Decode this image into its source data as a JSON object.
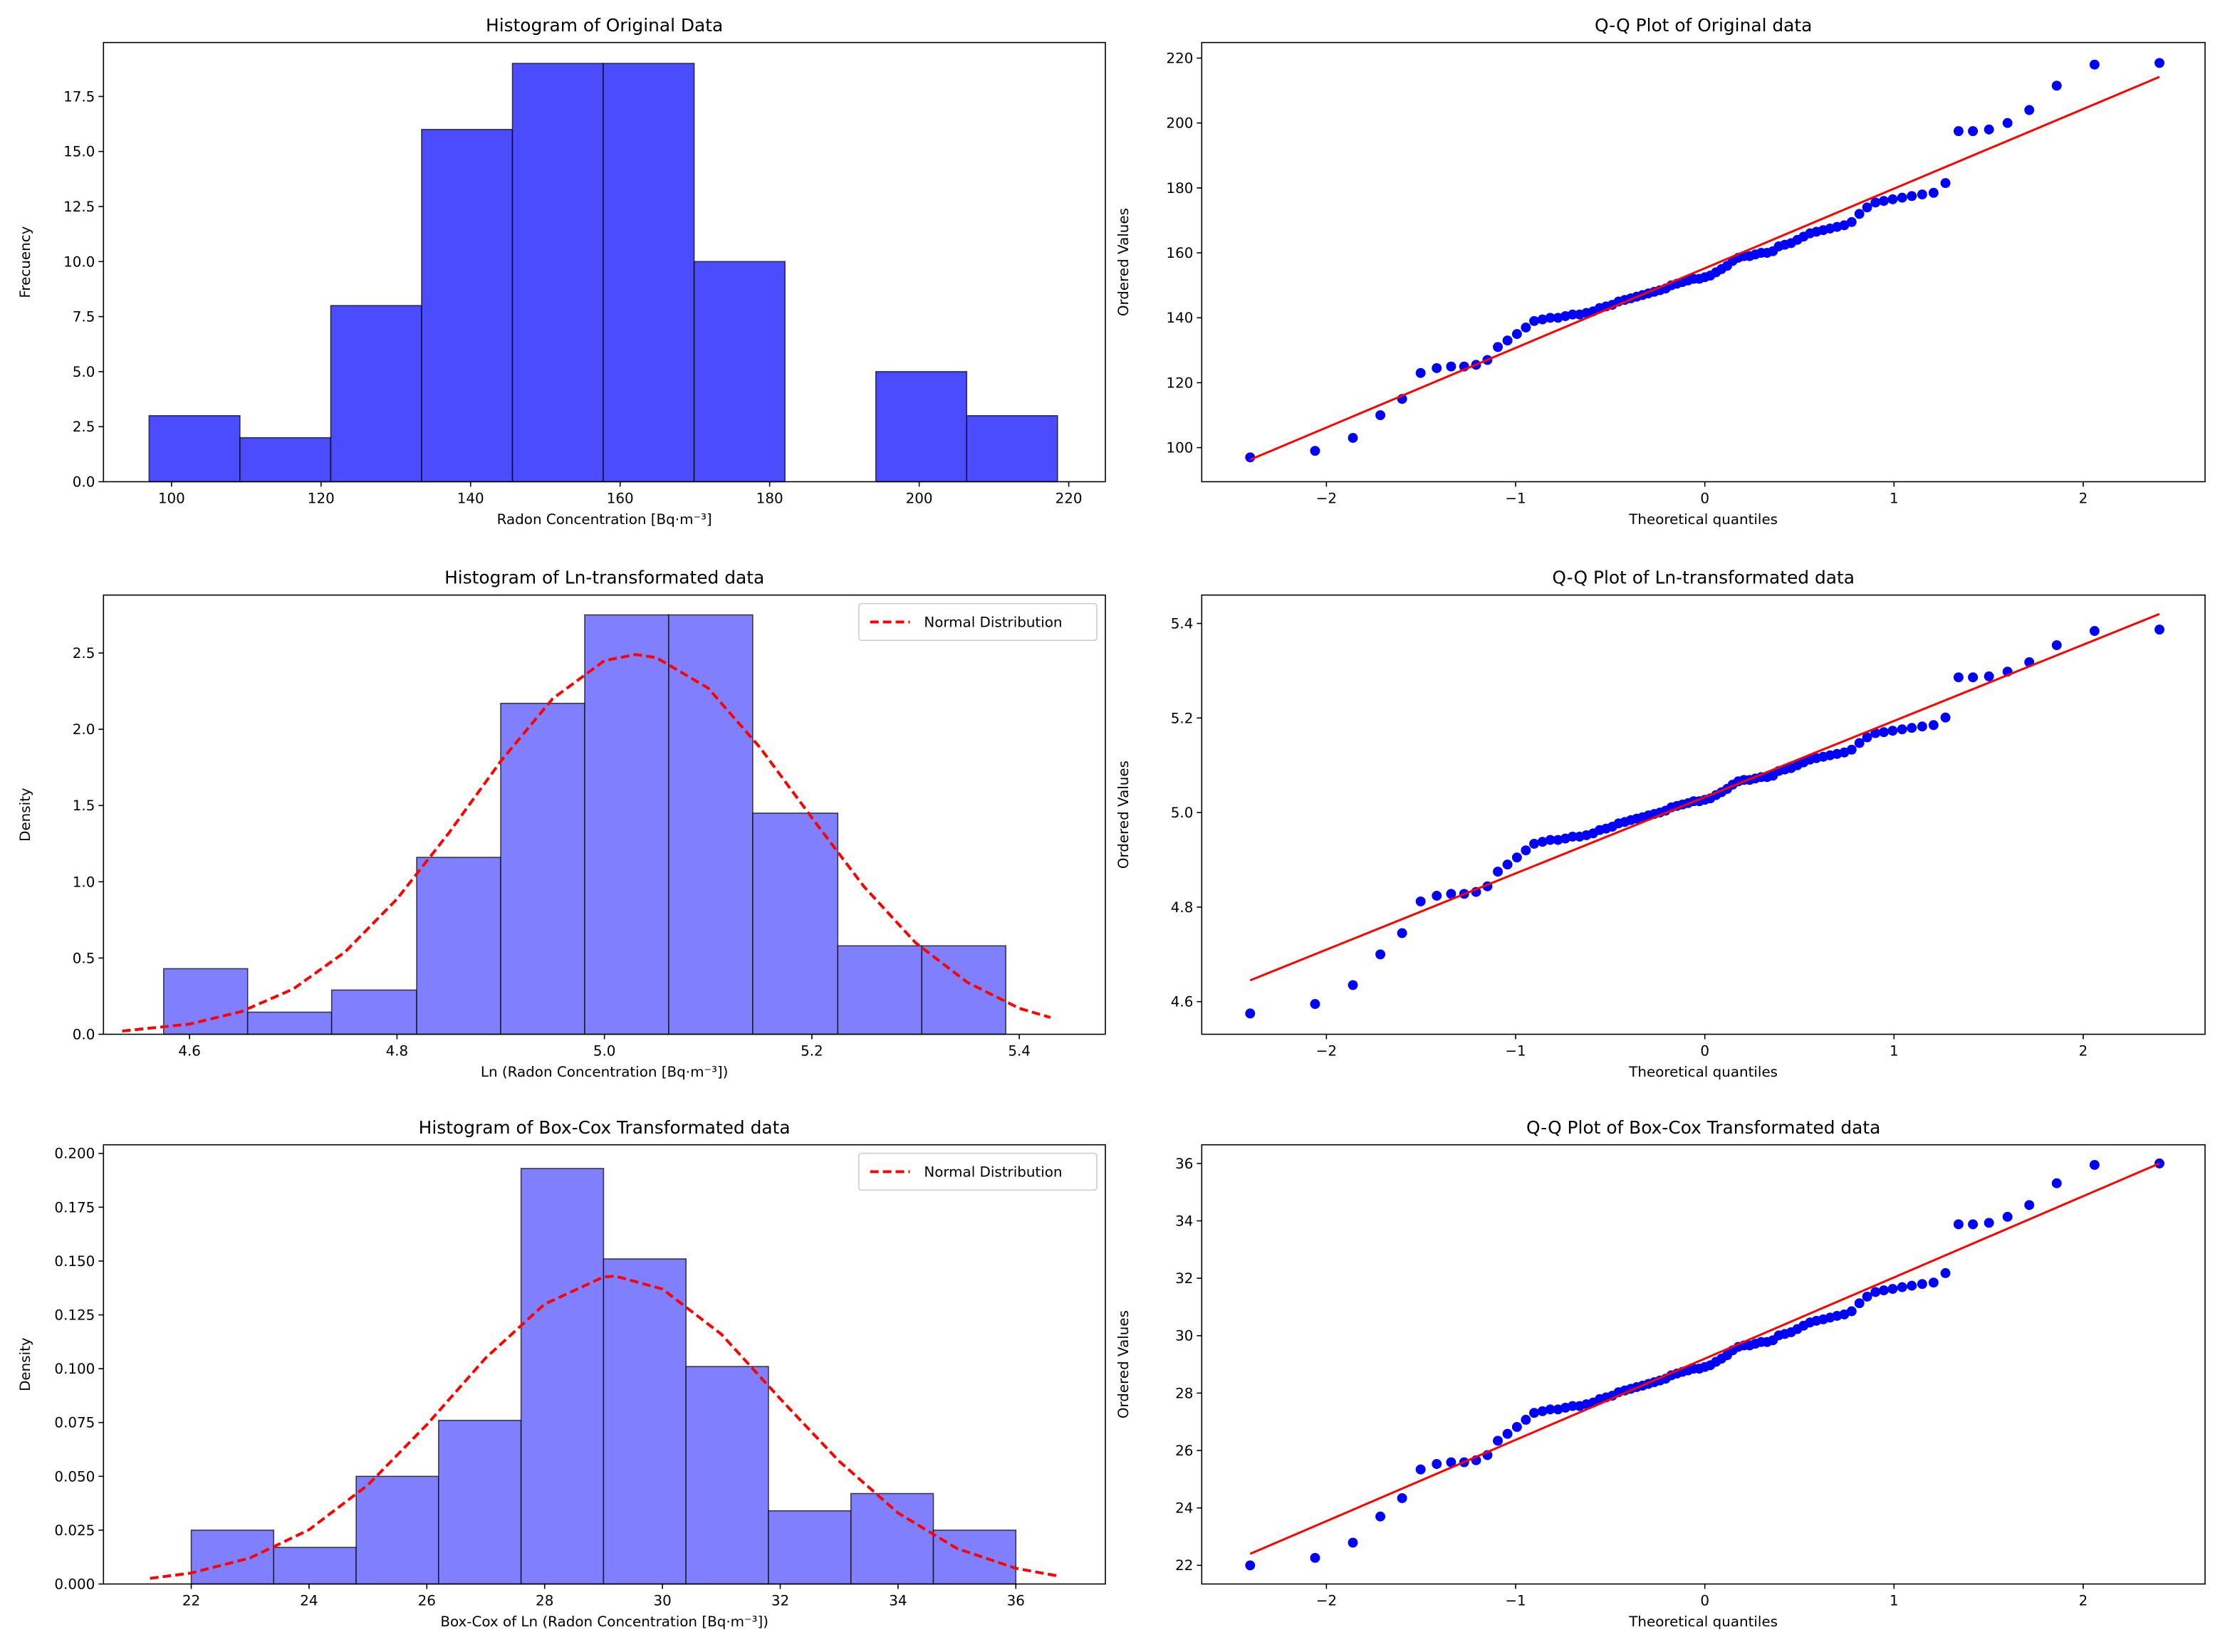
{
  "chart_data": [
    {
      "type": "histogram",
      "title": "Histogram of Original Data",
      "xlabel": "Radon Concentration [Bq·m⁻³]",
      "ylabel": "Frecuency",
      "bins": [
        97,
        109.15,
        121.3,
        133.45,
        145.6,
        157.75,
        169.9,
        182.05,
        194.2,
        206.35,
        218.5
      ],
      "values": [
        3,
        2,
        8,
        16,
        19,
        19,
        10,
        0,
        5,
        3
      ],
      "color": "#4c4cff",
      "xlim": [
        90.9,
        224.9
      ],
      "ylim": [
        0,
        19.95
      ],
      "xticks": [
        100,
        120,
        140,
        160,
        180,
        200,
        220
      ],
      "yticks": [
        {
          "value": 0,
          "label": "0.0"
        },
        2.5,
        {
          "value": 5,
          "label": "5.0"
        },
        7.5,
        {
          "value": 10,
          "label": "10.0"
        },
        12.5,
        {
          "value": 15,
          "label": "15.0"
        },
        17.5
      ]
    },
    {
      "type": "scatter",
      "title": "Q-Q Plot of Original data",
      "xlabel": "Theoretical quantiles",
      "ylabel": "Ordered Values",
      "xlim": [
        -2.659,
        2.644
      ],
      "ylim": [
        89.5,
        224.8
      ],
      "xticks": [
        {
          "value": -2,
          "label": "−2"
        },
        {
          "value": -1,
          "label": "−1"
        },
        0,
        1,
        2
      ],
      "yticks": [
        100,
        120,
        140,
        160,
        180,
        200,
        220
      ],
      "series": [
        {
          "color": "#0000ff",
          "x": [
            -2.403,
            -2.06,
            -1.86,
            -1.715,
            -1.6,
            -1.502,
            -1.417,
            -1.341,
            -1.272,
            -1.209,
            -1.149,
            -1.094,
            -1.043,
            -0.993,
            -0.946,
            -0.902,
            -0.858,
            -0.817,
            -0.776,
            -0.737,
            -0.699,
            -0.662,
            -0.626,
            -0.59,
            -0.556,
            -0.522,
            -0.489,
            -0.456,
            -0.423,
            -0.391,
            -0.36,
            -0.329,
            -0.298,
            -0.267,
            -0.237,
            -0.207,
            -0.177,
            -0.147,
            -0.118,
            -0.088,
            -0.059,
            -0.029,
            0,
            0.029,
            0.059,
            0.088,
            0.118,
            0.147,
            0.177,
            0.207,
            0.237,
            0.267,
            0.298,
            0.329,
            0.36,
            0.391,
            0.423,
            0.456,
            0.489,
            0.522,
            0.556,
            0.59,
            0.626,
            0.662,
            0.699,
            0.737,
            0.776,
            0.817,
            0.858,
            0.902,
            0.946,
            0.993,
            1.043,
            1.094,
            1.149,
            1.209,
            1.272,
            1.341,
            1.417,
            1.502,
            1.6,
            1.715,
            1.86,
            2.06,
            2.403
          ],
          "values": [
            97,
            99,
            103,
            110,
            115,
            123,
            124.5,
            125,
            125,
            125.5,
            127,
            131,
            133,
            135,
            137,
            139,
            139.5,
            140,
            140,
            140.5,
            141,
            141,
            141.5,
            142,
            143,
            143.5,
            144,
            145,
            145.5,
            146,
            146.5,
            147,
            147.5,
            148,
            148.5,
            149,
            150,
            150.5,
            151,
            151.5,
            152,
            152,
            152.5,
            153,
            154,
            155,
            156,
            157.5,
            158.5,
            159,
            159,
            159.5,
            160,
            160,
            160.5,
            162,
            162.5,
            163,
            164,
            165,
            166,
            166.5,
            167,
            167.5,
            168,
            168.5,
            169.5,
            172,
            174,
            175.5,
            176,
            176.5,
            177,
            177.5,
            178,
            178.5,
            181.5,
            197.5,
            197.5,
            198,
            200,
            204,
            211.5,
            218,
            218.5
          ]
        },
        {
          "color": "#ff0000",
          "x": [
            -2.403,
            2.403
          ],
          "values": [
            96.3,
            214.2
          ]
        }
      ]
    },
    {
      "type": "histogram",
      "title": "Histogram of Ln-transformated data",
      "xlabel": "Ln (Radon Concentration [Bq·m⁻³])",
      "ylabel": "Density",
      "bins": [
        4.575,
        4.656,
        4.737,
        4.819,
        4.9,
        4.981,
        5.062,
        5.143,
        5.225,
        5.306,
        5.387
      ],
      "values": [
        0.43,
        0.145,
        0.29,
        1.16,
        2.17,
        2.75,
        2.75,
        1.45,
        0.58,
        0.58
      ],
      "color": "#8080ff",
      "xlim": [
        4.517,
        5.483
      ],
      "ylim": [
        0,
        2.88
      ],
      "xticks": [
        4.6,
        4.8,
        {
          "value": 5,
          "label": "5.0"
        },
        5.2,
        5.4
      ],
      "yticks": [
        {
          "value": 0,
          "label": "0.0"
        },
        0.5,
        {
          "value": 1,
          "label": "1.0"
        },
        1.5,
        {
          "value": 2,
          "label": "2.0"
        },
        2.5
      ],
      "legend": "upper right",
      "series": [
        {
          "name": "Normal Distribution",
          "color": "#ff0000",
          "x": [
            4.535,
            4.6,
            4.65,
            4.7,
            4.75,
            4.8,
            4.85,
            4.9,
            4.95,
            5.0,
            5.03,
            5.05,
            5.1,
            5.15,
            5.2,
            5.25,
            5.3,
            5.35,
            5.4,
            5.43
          ],
          "values": [
            0.021,
            0.067,
            0.149,
            0.297,
            0.54,
            0.887,
            1.32,
            1.79,
            2.2,
            2.45,
            2.49,
            2.47,
            2.27,
            1.88,
            1.42,
            0.97,
            0.6,
            0.34,
            0.17,
            0.11
          ]
        }
      ]
    },
    {
      "type": "scatter",
      "title": "Q-Q Plot of Ln-transformated data",
      "xlabel": "Theoretical quantiles",
      "ylabel": "Ordered Values",
      "xlim": [
        -2.659,
        2.644
      ],
      "ylim": [
        4.531,
        5.46
      ],
      "xticks": [
        {
          "value": -2,
          "label": "−2"
        },
        {
          "value": -1,
          "label": "−1"
        },
        0,
        1,
        2
      ],
      "yticks": [
        4.6,
        4.8,
        {
          "value": 5,
          "label": "5.0"
        },
        5.2,
        5.4
      ],
      "series": [
        {
          "color": "#0000ff",
          "x": [
            -2.403,
            -2.06,
            -1.86,
            -1.715,
            -1.6,
            -1.502,
            -1.417,
            -1.341,
            -1.272,
            -1.209,
            -1.149,
            -1.094,
            -1.043,
            -0.993,
            -0.946,
            -0.902,
            -0.858,
            -0.817,
            -0.776,
            -0.737,
            -0.699,
            -0.662,
            -0.626,
            -0.59,
            -0.556,
            -0.522,
            -0.489,
            -0.456,
            -0.423,
            -0.391,
            -0.36,
            -0.329,
            -0.298,
            -0.267,
            -0.237,
            -0.207,
            -0.177,
            -0.147,
            -0.118,
            -0.088,
            -0.059,
            -0.029,
            0,
            0.029,
            0.059,
            0.088,
            0.118,
            0.147,
            0.177,
            0.207,
            0.237,
            0.267,
            0.298,
            0.329,
            0.36,
            0.391,
            0.423,
            0.456,
            0.489,
            0.522,
            0.556,
            0.59,
            0.626,
            0.662,
            0.699,
            0.737,
            0.776,
            0.817,
            0.858,
            0.902,
            0.946,
            0.993,
            1.043,
            1.094,
            1.149,
            1.209,
            1.272,
            1.341,
            1.417,
            1.502,
            1.6,
            1.715,
            1.86,
            2.06,
            2.403
          ],
          "values": [
            4.575,
            4.595,
            4.635,
            4.7,
            4.745,
            4.812,
            4.824,
            4.828,
            4.828,
            4.832,
            4.844,
            4.875,
            4.89,
            4.905,
            4.92,
            4.934,
            4.938,
            4.942,
            4.942,
            4.945,
            4.949,
            4.949,
            4.952,
            4.956,
            4.963,
            4.966,
            4.97,
            4.977,
            4.98,
            4.984,
            4.987,
            4.99,
            4.994,
            4.997,
            5.0,
            5.004,
            5.011,
            5.014,
            5.017,
            5.02,
            5.024,
            5.024,
            5.027,
            5.03,
            5.037,
            5.043,
            5.05,
            5.059,
            5.066,
            5.069,
            5.069,
            5.072,
            5.075,
            5.075,
            5.078,
            5.088,
            5.091,
            5.094,
            5.1,
            5.106,
            5.112,
            5.115,
            5.118,
            5.121,
            5.124,
            5.127,
            5.133,
            5.147,
            5.159,
            5.168,
            5.17,
            5.173,
            5.176,
            5.179,
            5.182,
            5.185,
            5.201,
            5.286,
            5.286,
            5.288,
            5.298,
            5.318,
            5.354,
            5.384,
            5.387
          ]
        },
        {
          "color": "#ff0000",
          "x": [
            -2.403,
            2.403
          ],
          "values": [
            4.645,
            5.42
          ]
        }
      ]
    },
    {
      "type": "histogram",
      "title": "Histogram of Box-Cox Transformated data",
      "xlabel": "Box-Cox of Ln (Radon Concentration [Bq·m⁻³])",
      "ylabel": "Density",
      "bins": [
        22,
        23.4,
        24.8,
        26.2,
        27.6,
        29,
        30.4,
        31.8,
        33.2,
        34.6,
        36
      ],
      "values": [
        0.025,
        0.017,
        0.05,
        0.076,
        0.193,
        0.151,
        0.101,
        0.034,
        0.042,
        0.025
      ],
      "color": "#8080ff",
      "xlim": [
        20.51,
        37.52
      ],
      "ylim": [
        0,
        0.204
      ],
      "xticks": [
        22,
        24,
        26,
        28,
        30,
        32,
        34,
        36
      ],
      "yticks": [
        {
          "value": 0,
          "label": "0.000"
        },
        0.025,
        {
          "value": 0.05,
          "label": "0.050"
        },
        0.075,
        {
          "value": 0.1,
          "label": "0.100"
        },
        0.125,
        {
          "value": 0.15,
          "label": "0.150"
        },
        0.175,
        {
          "value": 0.2,
          "label": "0.200"
        }
      ],
      "legend": "upper right",
      "series": [
        {
          "name": "Normal Distribution",
          "color": "#ff0000",
          "x": [
            21.3,
            22,
            23,
            24,
            25,
            26,
            27,
            28,
            29,
            29.2,
            30,
            31,
            32,
            33,
            34,
            35,
            36,
            36.7
          ],
          "values": [
            0.0026,
            0.0051,
            0.0121,
            0.0252,
            0.046,
            0.074,
            0.105,
            0.13,
            0.1426,
            0.143,
            0.137,
            0.116,
            0.086,
            0.057,
            0.033,
            0.0165,
            0.0073,
            0.0038
          ]
        }
      ]
    },
    {
      "type": "scatter",
      "title": "Q-Q Plot of Box-Cox Transformated data",
      "xlabel": "Theoretical quantiles",
      "ylabel": "Ordered Values",
      "xlim": [
        -2.659,
        2.644
      ],
      "ylim": [
        21.35,
        36.65
      ],
      "xticks": [
        {
          "value": -2,
          "label": "−2"
        },
        {
          "value": -1,
          "label": "−1"
        },
        0,
        1,
        2
      ],
      "yticks": [
        22,
        24,
        26,
        28,
        30,
        32,
        34,
        36
      ],
      "series": [
        {
          "color": "#0000ff",
          "x": [
            -2.403,
            -2.06,
            -1.86,
            -1.715,
            -1.6,
            -1.502,
            -1.417,
            -1.341,
            -1.272,
            -1.209,
            -1.149,
            -1.094,
            -1.043,
            -0.993,
            -0.946,
            -0.902,
            -0.858,
            -0.817,
            -0.776,
            -0.737,
            -0.699,
            -0.662,
            -0.626,
            -0.59,
            -0.556,
            -0.522,
            -0.489,
            -0.456,
            -0.423,
            -0.391,
            -0.36,
            -0.329,
            -0.298,
            -0.267,
            -0.237,
            -0.207,
            -0.177,
            -0.147,
            -0.118,
            -0.088,
            -0.059,
            -0.029,
            0,
            0.029,
            0.059,
            0.088,
            0.118,
            0.147,
            0.177,
            0.207,
            0.237,
            0.267,
            0.298,
            0.329,
            0.36,
            0.391,
            0.423,
            0.456,
            0.489,
            0.522,
            0.556,
            0.59,
            0.626,
            0.662,
            0.699,
            0.737,
            0.776,
            0.817,
            0.858,
            0.902,
            0.946,
            0.993,
            1.043,
            1.094,
            1.149,
            1.209,
            1.272,
            1.341,
            1.417,
            1.502,
            1.6,
            1.715,
            1.86,
            2.06,
            2.403
          ],
          "values": [
            22.0,
            22.26,
            22.79,
            23.7,
            24.34,
            25.34,
            25.53,
            25.59,
            25.59,
            25.66,
            25.84,
            26.34,
            26.58,
            26.82,
            27.07,
            27.31,
            27.37,
            27.43,
            27.43,
            27.49,
            27.55,
            27.55,
            27.61,
            27.67,
            27.79,
            27.85,
            27.91,
            28.03,
            28.09,
            28.15,
            28.21,
            28.26,
            28.32,
            28.38,
            28.44,
            28.5,
            28.62,
            28.68,
            28.74,
            28.79,
            28.85,
            28.85,
            28.91,
            28.97,
            29.09,
            29.2,
            29.32,
            29.49,
            29.61,
            29.66,
            29.66,
            29.72,
            29.78,
            29.78,
            29.84,
            30.01,
            30.06,
            30.12,
            30.23,
            30.35,
            30.46,
            30.52,
            30.57,
            30.63,
            30.69,
            30.74,
            30.85,
            31.13,
            31.36,
            31.52,
            31.58,
            31.63,
            31.69,
            31.74,
            31.8,
            31.85,
            32.18,
            33.88,
            33.88,
            33.93,
            34.14,
            34.55,
            35.31,
            35.95,
            36.0
          ]
        },
        {
          "color": "#ff0000",
          "x": [
            -2.403,
            2.403
          ],
          "values": [
            22.4,
            36.0
          ]
        }
      ]
    }
  ]
}
